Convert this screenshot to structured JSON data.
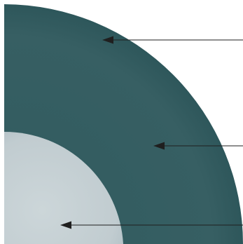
{
  "diagram": {
    "kind": "quarter-circle cross-section with three pointer arrows",
    "labels": [],
    "colors": {
      "background": "#ffffff",
      "outer_region": "#2f5a5e",
      "outer_region_light": "#3a6468",
      "inner_core_center": "#ccd6d9",
      "inner_core_edge": "#b3c2c7",
      "arrow": "#1f1f1f"
    },
    "pointers": [
      {
        "target": "outer-region-upper"
      },
      {
        "target": "outer-region-middle"
      },
      {
        "target": "inner-core"
      }
    ]
  }
}
